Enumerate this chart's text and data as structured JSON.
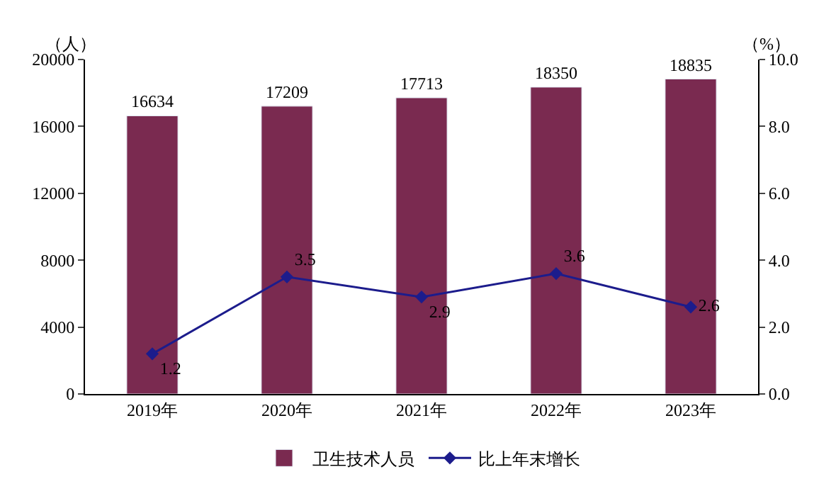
{
  "chart_data": {
    "type": "bar",
    "categories": [
      "2019年",
      "2020年",
      "2021年",
      "2022年",
      "2023年"
    ],
    "series": [
      {
        "name": "卫生技术人员",
        "color": "#7a2a50",
        "values": [
          16634,
          17209,
          17713,
          18350,
          18835
        ]
      },
      {
        "name": "比上年末增长",
        "type": "line",
        "axis": "y2",
        "color": "#1c1c8c",
        "values": [
          1.2,
          3.5,
          2.9,
          3.6,
          2.6
        ]
      }
    ],
    "ylabel": "（人）",
    "y2label": "（%）",
    "ylim": [
      0,
      20000
    ],
    "yticks": [
      0,
      4000,
      8000,
      12000,
      16000,
      20000
    ],
    "y2lim": [
      0,
      10.0
    ],
    "y2ticks": [
      {
        "value": 0,
        "label": "0.0"
      },
      {
        "value": 2,
        "label": "2.0"
      },
      {
        "value": 4,
        "label": "4.0"
      },
      {
        "value": 6,
        "label": "6.0"
      },
      {
        "value": 8,
        "label": "8.0"
      },
      {
        "value": 10,
        "label": "10.0"
      }
    ],
    "data_labels": true,
    "marker": "diamond",
    "legend": "bottom"
  }
}
